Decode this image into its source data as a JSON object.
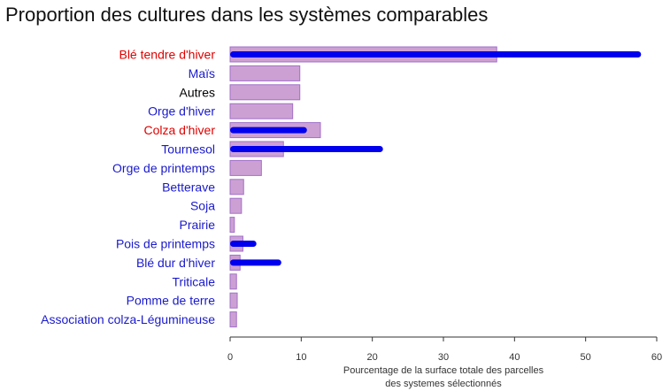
{
  "chart_data": {
    "type": "bar",
    "title": "Proportion des cultures dans les systèmes comparables",
    "xlabel_lines": [
      "Pourcentage de la surface totale des parcelles",
      "des systemes sélectionnés"
    ],
    "xlim": [
      0,
      60
    ],
    "xticks": [
      0,
      10,
      20,
      30,
      40,
      50,
      60
    ],
    "grid": false,
    "orientation": "horizontal",
    "categories": [
      "Blé tendre d'hiver",
      "Maïs",
      "Autres",
      "Orge d'hiver",
      "Colza d'hiver",
      "Tournesol",
      "Orge de printemps",
      "Betterave",
      "Soja",
      "Prairie",
      "Pois de printemps",
      "Blé dur d'hiver",
      "Triticale",
      "Pomme de terre",
      "Association colza-Légumineuse"
    ],
    "category_colors": [
      "#e00000",
      "#1a1acc",
      "#000000",
      "#1a1acc",
      "#e00000",
      "#1a1acc",
      "#1a1acc",
      "#1a1acc",
      "#1a1acc",
      "#1a1acc",
      "#1a1acc",
      "#1a1acc",
      "#1a1acc",
      "#1a1acc",
      "#1a1acc"
    ],
    "series": [
      {
        "style": "wide-bar",
        "color": "#cda0d4",
        "edge_color": "#a070c8",
        "values": [
          37.5,
          9.8,
          9.8,
          8.8,
          12.7,
          7.5,
          4.4,
          1.9,
          1.6,
          0.6,
          1.8,
          1.4,
          0.9,
          1.0,
          0.9
        ]
      },
      {
        "style": "thin-bar",
        "color": "#0000ee",
        "values": [
          57.8,
          null,
          null,
          null,
          10.8,
          21.5,
          null,
          null,
          null,
          null,
          3.7,
          7.2,
          null,
          null,
          null
        ]
      }
    ]
  }
}
